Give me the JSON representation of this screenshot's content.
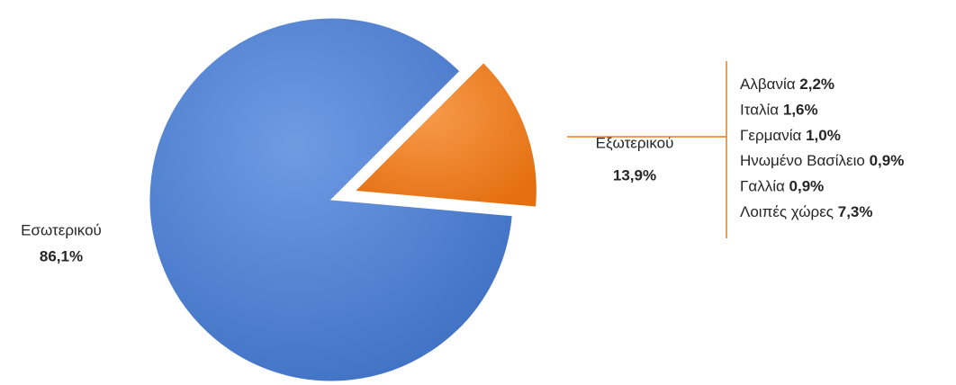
{
  "chart_data": {
    "type": "pie",
    "categories": [
      "Εσωτερικού",
      "Εξωτερικού"
    ],
    "values": [
      86.1,
      13.9
    ],
    "value_labels": [
      "86,1%",
      "13,9%"
    ],
    "colors": [
      "#4a7fd4",
      "#f07c1a"
    ],
    "breakdown": {
      "categories": [
        "Αλβανία",
        "Ιταλία",
        "Γερμανία",
        "Ηνωμένο Βασίλειο",
        "Γαλλία",
        "Λοιπές χώρες"
      ],
      "values": [
        2.2,
        1.6,
        1.0,
        0.9,
        0.9,
        7.3
      ],
      "value_labels": [
        "2,2%",
        "1,6%",
        "1,0%",
        "0,9%",
        "0,9%",
        "7,3%"
      ]
    }
  }
}
